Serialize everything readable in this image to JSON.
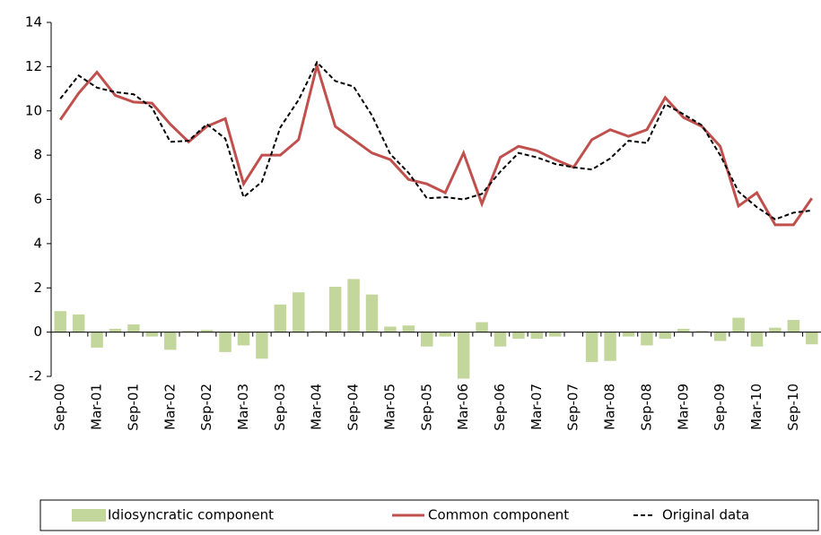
{
  "chart_data": {
    "type": "combo",
    "categories": [
      "Sep-00",
      null,
      "Mar-01",
      null,
      "Sep-01",
      null,
      "Mar-02",
      null,
      "Sep-02",
      null,
      "Mar-03",
      null,
      "Sep-03",
      null,
      "Mar-04",
      null,
      "Sep-04",
      null,
      "Mar-05",
      null,
      "Sep-05",
      null,
      "Mar-06",
      null,
      "Sep-06",
      null,
      "Mar-07",
      null,
      "Sep-07",
      null,
      "Mar-08",
      null,
      "Sep-08",
      null,
      "Mar-09",
      null,
      "Sep-09",
      null,
      "Mar-10",
      null,
      "Sep-10",
      null
    ],
    "series": [
      {
        "name": "Idiosyncratic component",
        "type": "bar",
        "color": "#c3d69b",
        "values": [
          0.95,
          0.8,
          -0.7,
          0.15,
          0.35,
          -0.2,
          -0.8,
          0.05,
          0.1,
          -0.9,
          -0.6,
          -1.2,
          1.25,
          1.8,
          0.05,
          2.05,
          2.4,
          1.7,
          0.25,
          0.3,
          -0.65,
          -0.2,
          -2.1,
          0.45,
          -0.65,
          -0.3,
          -0.3,
          -0.2,
          0.0,
          -1.35,
          -1.3,
          -0.2,
          -0.6,
          -0.3,
          0.15,
          0.05,
          -0.4,
          0.65,
          -0.65,
          0.2,
          0.55,
          -0.55
        ]
      },
      {
        "name": "Common component",
        "type": "line",
        "color": "#c0504d",
        "dashed": false,
        "values": [
          9.6,
          10.8,
          11.75,
          10.7,
          10.4,
          10.35,
          9.4,
          8.6,
          9.3,
          9.65,
          6.7,
          8.0,
          8.0,
          8.7,
          12.05,
          9.3,
          8.7,
          8.1,
          7.8,
          6.9,
          6.7,
          6.3,
          8.1,
          5.8,
          7.9,
          8.4,
          8.2,
          7.8,
          7.45,
          8.7,
          9.15,
          8.85,
          9.15,
          10.6,
          9.7,
          9.3,
          8.4,
          5.7,
          6.3,
          4.85,
          4.85,
          6.05
        ]
      },
      {
        "name": "Original data",
        "type": "line",
        "color": "#000000",
        "dashed": true,
        "values": [
          10.55,
          11.6,
          11.05,
          10.85,
          10.75,
          10.15,
          8.6,
          8.65,
          9.4,
          8.75,
          6.1,
          6.8,
          9.25,
          10.5,
          12.2,
          11.35,
          11.1,
          9.8,
          8.05,
          7.2,
          6.05,
          6.1,
          6.0,
          6.25,
          7.25,
          8.1,
          7.9,
          7.6,
          7.45,
          7.35,
          7.85,
          8.65,
          8.55,
          10.3,
          9.85,
          9.35,
          8.0,
          6.35,
          5.65,
          5.1,
          5.4,
          5.5
        ]
      }
    ],
    "ylim": [
      -2,
      14
    ],
    "yticks": [
      -2,
      0,
      2,
      4,
      6,
      8,
      10,
      12,
      14
    ],
    "grid": false,
    "legend": "bottom"
  }
}
